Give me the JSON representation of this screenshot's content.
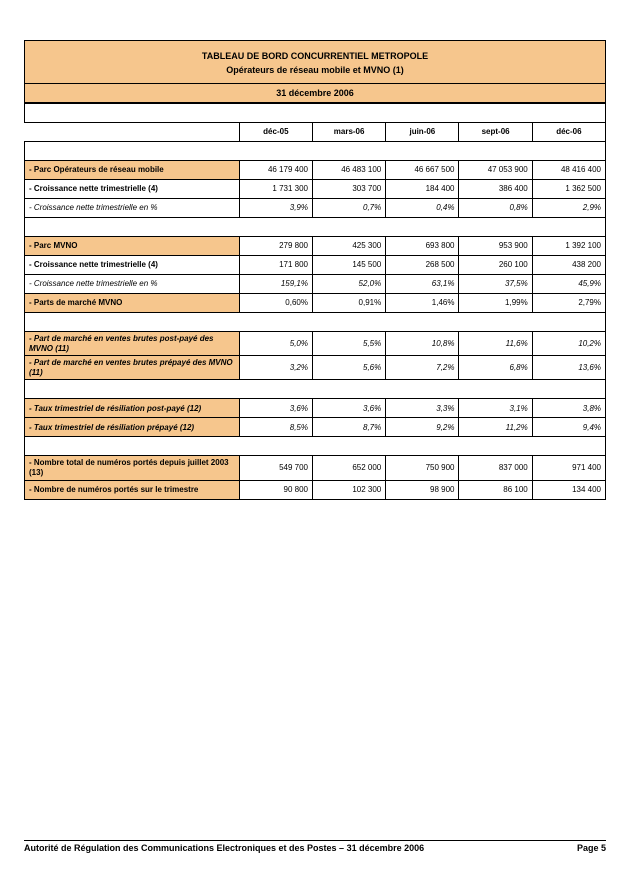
{
  "title1": "TABLEAU DE BORD CONCURRENTIEL METROPOLE",
  "title2": "Opérateurs de réseau mobile et MVNO (1)",
  "date": "31 décembre 2006",
  "columns": [
    "déc-05",
    "mars-06",
    "juin-06",
    "sept-06",
    "déc-06"
  ],
  "sections": [
    {
      "rows": [
        {
          "label": "- Parc Opérateurs de réseau mobile",
          "style": "orange",
          "values": [
            "46 179 400",
            "46 483 100",
            "46 667 500",
            "47 053 900",
            "48 416 400"
          ]
        },
        {
          "label": "- Croissance nette trimestrielle (4)",
          "style": "bold",
          "values": [
            "1 731 300",
            "303 700",
            "184 400",
            "386 400",
            "1 362 500"
          ]
        },
        {
          "label": "- Croissance nette trimestrielle en %",
          "style": "italic",
          "values": [
            "3,9%",
            "0,7%",
            "0,4%",
            "0,8%",
            "2,9%"
          ]
        }
      ]
    },
    {
      "rows": [
        {
          "label": "- Parc MVNO",
          "style": "orange",
          "values": [
            "279 800",
            "425 300",
            "693 800",
            "953 900",
            "1 392 100"
          ]
        },
        {
          "label": "- Croissance nette trimestrielle (4)",
          "style": "bold",
          "values": [
            "171 800",
            "145 500",
            "268 500",
            "260 100",
            "438 200"
          ]
        },
        {
          "label": "- Croissance nette trimestrielle en %",
          "style": "italic",
          "values": [
            "159,1%",
            "52,0%",
            "63,1%",
            "37,5%",
            "45,9%"
          ]
        }
      ]
    },
    {
      "rows": [
        {
          "label": "- Parts de marché MVNO",
          "style": "orange-full",
          "values": [
            "0,60%",
            "0,91%",
            "1,46%",
            "1,99%",
            "2,79%"
          ]
        }
      ]
    },
    {
      "rows": [
        {
          "label": "- Part de marché en ventes brutes post-payé des MVNO (11)",
          "style": "orange italic",
          "values": [
            "5,0%",
            "5,5%",
            "10,8%",
            "11,6%",
            "10,2%"
          ]
        },
        {
          "label": "- Part de marché en ventes brutes prépayé des MVNO (11)",
          "style": "orange italic",
          "values": [
            "3,2%",
            "5,6%",
            "7,2%",
            "6,8%",
            "13,6%"
          ]
        }
      ]
    },
    {
      "rows": [
        {
          "label": "- Taux trimestriel de résiliation post-payé  (12)",
          "style": "orange italic",
          "values": [
            "3,6%",
            "3,6%",
            "3,3%",
            "3,1%",
            "3,8%"
          ]
        },
        {
          "label": "- Taux trimestriel de résiliation prépayé  (12)",
          "style": "orange italic",
          "values": [
            "8,5%",
            "8,7%",
            "9,2%",
            "11,2%",
            "9,4%"
          ]
        }
      ]
    },
    {
      "rows": [
        {
          "label": "- Nombre total de numéros portés depuis juillet 2003 (13)",
          "style": "orange",
          "values": [
            "549 700",
            "652 000",
            "750 900",
            "837 000",
            "971 400"
          ]
        },
        {
          "label": "- Nombre de numéros portés sur le trimestre",
          "style": "orange",
          "values": [
            "90 800",
            "102 300",
            "98 900",
            "86 100",
            "134 400"
          ]
        }
      ]
    }
  ],
  "footer_left": "Autorité de Régulation des Communications Electroniques et des Postes – 31 décembre 2006",
  "footer_right": "Page 5"
}
